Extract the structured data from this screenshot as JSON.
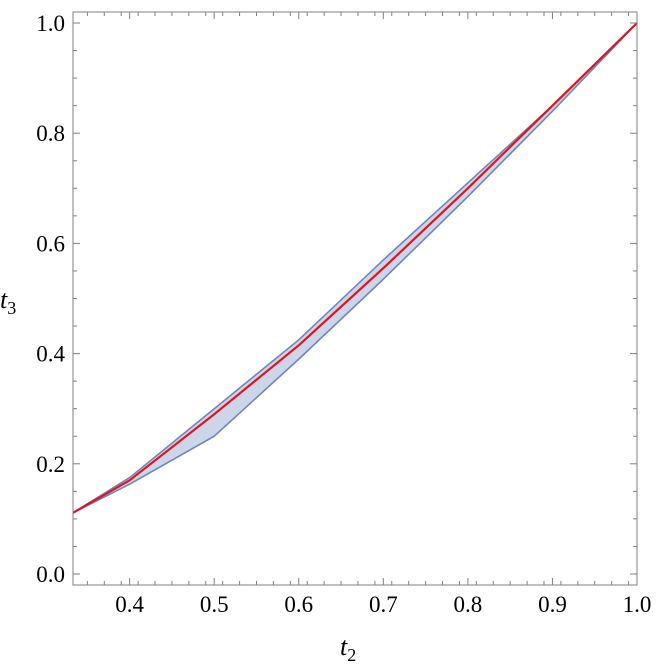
{
  "chart_data": {
    "type": "area",
    "xlabel": "t",
    "xlabel_subscript": "2",
    "ylabel": "t",
    "ylabel_subscript": "3",
    "xlim": [
      0.333,
      1.0
    ],
    "ylim": [
      -0.02,
      1.02
    ],
    "xticks": [
      0.4,
      0.5,
      0.6,
      0.7,
      0.8,
      0.9,
      1.0
    ],
    "xtick_labels": [
      "0.4",
      "0.5",
      "0.6",
      "0.7",
      "0.8",
      "0.9",
      "1.0"
    ],
    "yticks": [
      0.0,
      0.2,
      0.4,
      0.6,
      0.8,
      1.0
    ],
    "ytick_labels": [
      "0.0",
      "0.2",
      "0.4",
      "0.6",
      "0.8",
      "1.0"
    ],
    "grid": false,
    "series": [
      {
        "kind": "band",
        "upper": {
          "x": [
            0.333,
            0.4,
            0.5,
            0.6,
            0.7,
            0.8,
            0.9,
            1.0
          ],
          "y": [
            0.111,
            0.175,
            0.3,
            0.425,
            0.57,
            0.71,
            0.85,
            1.0
          ]
        },
        "lower": {
          "x": [
            0.333,
            0.4,
            0.5,
            0.6,
            0.7,
            0.8,
            0.9,
            1.0
          ],
          "y": [
            0.111,
            0.163,
            0.25,
            0.39,
            0.535,
            0.685,
            0.84,
            1.0
          ]
        },
        "fill": "#cdd5e8",
        "stroke": "#6d86bd"
      },
      {
        "kind": "line",
        "x": [
          0.333,
          0.4,
          0.5,
          0.6,
          0.7,
          0.8,
          0.9,
          1.0
        ],
        "y": [
          0.111,
          0.17,
          0.29,
          0.415,
          0.555,
          0.7,
          0.85,
          1.0
        ],
        "color": "#e0141e"
      }
    ]
  }
}
